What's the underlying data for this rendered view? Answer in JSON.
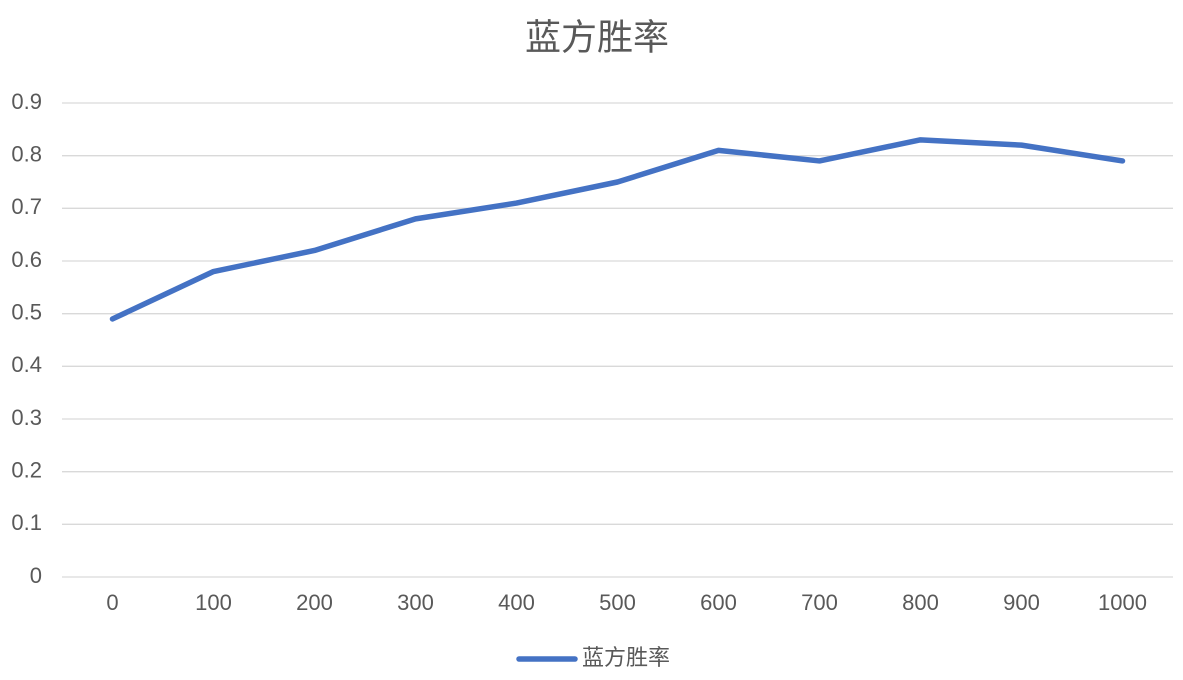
{
  "chart_data": {
    "type": "line",
    "title": "蓝方胜率",
    "categories": [
      "0",
      "100",
      "200",
      "300",
      "400",
      "500",
      "600",
      "700",
      "800",
      "900",
      "1000"
    ],
    "series": [
      {
        "name": "蓝方胜率",
        "color": "#4472c4",
        "values": [
          0.49,
          0.58,
          0.62,
          0.68,
          0.71,
          0.75,
          0.81,
          0.79,
          0.83,
          0.82,
          0.79
        ]
      }
    ],
    "ylim": [
      0,
      0.9
    ],
    "yticks": [
      0,
      0.1,
      0.2,
      0.3,
      0.4,
      0.5,
      0.6,
      0.7,
      0.8,
      0.9
    ],
    "grid": true,
    "legend": "bottom"
  }
}
